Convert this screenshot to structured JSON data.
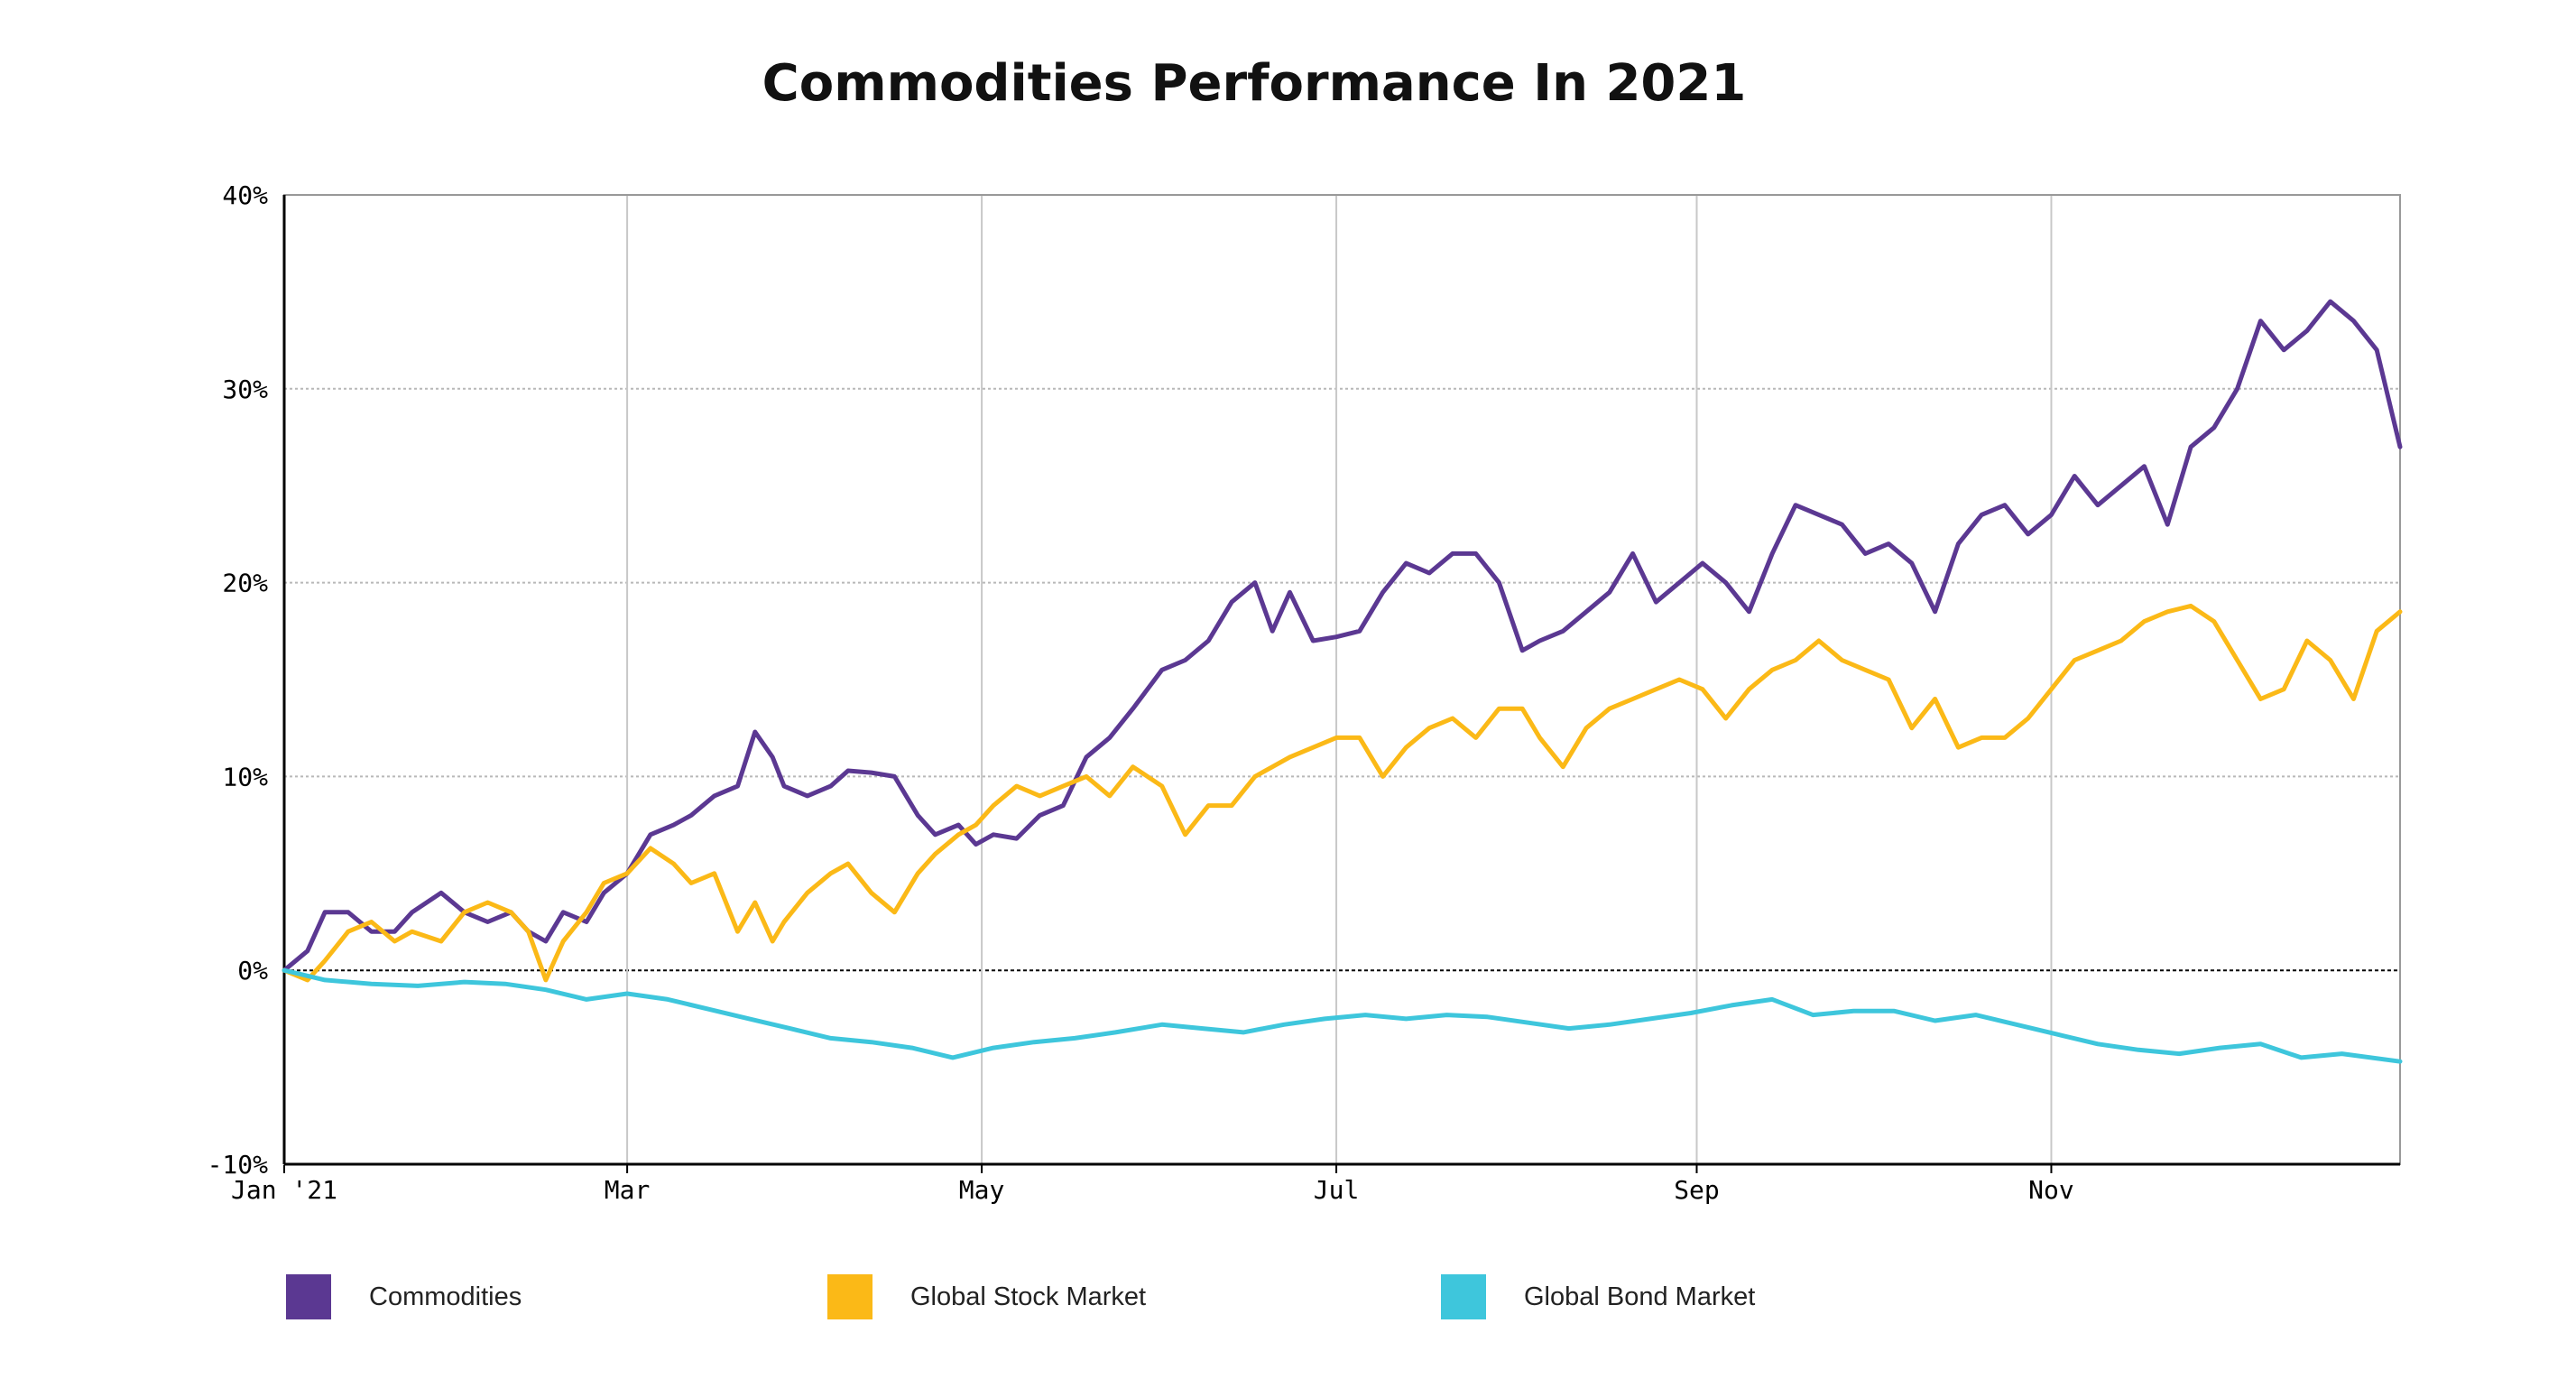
{
  "chart_data": {
    "type": "line",
    "title": "Commodities Performance In 2021",
    "xlabel": "",
    "ylabel": "",
    "ylim": [
      -10,
      40
    ],
    "xlim": [
      "2021-01-01",
      "2021-12-31"
    ],
    "y_ticks": [
      "-10%",
      "0%",
      "10%",
      "20%",
      "30%",
      "40%"
    ],
    "x_ticks": [
      {
        "date": "2021-01-01",
        "label": "Jan '21"
      },
      {
        "date": "2021-03-01",
        "label": "Mar"
      },
      {
        "date": "2021-05-01",
        "label": "May"
      },
      {
        "date": "2021-07-01",
        "label": "Jul"
      },
      {
        "date": "2021-09-01",
        "label": "Sep"
      },
      {
        "date": "2021-11-01",
        "label": "Nov"
      }
    ],
    "grid": true,
    "legend_position": "bottom",
    "series": [
      {
        "name": "Commodities",
        "color": "#5b3892",
        "points": [
          [
            "2021-01-01",
            0
          ],
          [
            "2021-01-05",
            1
          ],
          [
            "2021-01-08",
            3
          ],
          [
            "2021-01-12",
            3
          ],
          [
            "2021-01-16",
            2
          ],
          [
            "2021-01-20",
            2
          ],
          [
            "2021-01-23",
            3
          ],
          [
            "2021-01-28",
            4
          ],
          [
            "2021-02-01",
            3
          ],
          [
            "2021-02-05",
            2.5
          ],
          [
            "2021-02-09",
            3
          ],
          [
            "2021-02-12",
            2
          ],
          [
            "2021-02-15",
            1.5
          ],
          [
            "2021-02-18",
            3
          ],
          [
            "2021-02-22",
            2.5
          ],
          [
            "2021-02-25",
            4
          ],
          [
            "2021-03-01",
            5
          ],
          [
            "2021-03-05",
            7
          ],
          [
            "2021-03-09",
            7.5
          ],
          [
            "2021-03-12",
            8
          ],
          [
            "2021-03-16",
            9
          ],
          [
            "2021-03-20",
            9.5
          ],
          [
            "2021-03-23",
            12.3
          ],
          [
            "2021-03-26",
            11
          ],
          [
            "2021-03-28",
            9.5
          ],
          [
            "2021-04-01",
            9
          ],
          [
            "2021-04-05",
            9.5
          ],
          [
            "2021-04-08",
            10.3
          ],
          [
            "2021-04-12",
            10.2
          ],
          [
            "2021-04-16",
            10
          ],
          [
            "2021-04-20",
            8
          ],
          [
            "2021-04-23",
            7
          ],
          [
            "2021-04-27",
            7.5
          ],
          [
            "2021-04-30",
            6.5
          ],
          [
            "2021-05-03",
            7
          ],
          [
            "2021-05-07",
            6.8
          ],
          [
            "2021-05-11",
            8
          ],
          [
            "2021-05-15",
            8.5
          ],
          [
            "2021-05-19",
            11
          ],
          [
            "2021-05-23",
            12
          ],
          [
            "2021-05-27",
            13.5
          ],
          [
            "2021-06-01",
            15.5
          ],
          [
            "2021-06-05",
            16
          ],
          [
            "2021-06-09",
            17
          ],
          [
            "2021-06-13",
            19
          ],
          [
            "2021-06-17",
            20
          ],
          [
            "2021-06-20",
            17.5
          ],
          [
            "2021-06-23",
            19.5
          ],
          [
            "2021-06-27",
            17
          ],
          [
            "2021-07-01",
            17.2
          ],
          [
            "2021-07-05",
            17.5
          ],
          [
            "2021-07-09",
            19.5
          ],
          [
            "2021-07-13",
            21
          ],
          [
            "2021-07-17",
            20.5
          ],
          [
            "2021-07-21",
            21.5
          ],
          [
            "2021-07-25",
            21.5
          ],
          [
            "2021-07-29",
            20
          ],
          [
            "2021-08-02",
            16.5
          ],
          [
            "2021-08-05",
            17
          ],
          [
            "2021-08-09",
            17.5
          ],
          [
            "2021-08-13",
            18.5
          ],
          [
            "2021-08-17",
            19.5
          ],
          [
            "2021-08-21",
            21.5
          ],
          [
            "2021-08-25",
            19
          ],
          [
            "2021-08-29",
            20
          ],
          [
            "2021-09-02",
            21
          ],
          [
            "2021-09-06",
            20
          ],
          [
            "2021-09-10",
            18.5
          ],
          [
            "2021-09-14",
            21.5
          ],
          [
            "2021-09-18",
            24
          ],
          [
            "2021-09-22",
            23.5
          ],
          [
            "2021-09-26",
            23
          ],
          [
            "2021-09-30",
            21.5
          ],
          [
            "2021-10-04",
            22
          ],
          [
            "2021-10-08",
            21
          ],
          [
            "2021-10-12",
            18.5
          ],
          [
            "2021-10-16",
            22
          ],
          [
            "2021-10-20",
            23.5
          ],
          [
            "2021-10-24",
            24
          ],
          [
            "2021-10-28",
            22.5
          ],
          [
            "2021-11-01",
            23.5
          ],
          [
            "2021-11-05",
            25.5
          ],
          [
            "2021-11-09",
            24
          ],
          [
            "2021-11-13",
            25
          ],
          [
            "2021-11-17",
            26
          ],
          [
            "2021-11-21",
            23
          ],
          [
            "2021-11-25",
            27
          ],
          [
            "2021-11-29",
            28
          ],
          [
            "2021-12-03",
            30
          ],
          [
            "2021-12-07",
            33.5
          ],
          [
            "2021-12-11",
            32
          ],
          [
            "2021-12-15",
            33
          ],
          [
            "2021-12-19",
            34.5
          ],
          [
            "2021-12-23",
            33.5
          ],
          [
            "2021-12-27",
            32
          ],
          [
            "2021-12-31",
            27
          ]
        ]
      },
      {
        "name": "Global Stock Market",
        "color": "#fbb917",
        "points": [
          [
            "2021-01-01",
            0
          ],
          [
            "2021-01-05",
            -0.5
          ],
          [
            "2021-01-08",
            0.5
          ],
          [
            "2021-01-12",
            2
          ],
          [
            "2021-01-16",
            2.5
          ],
          [
            "2021-01-20",
            1.5
          ],
          [
            "2021-01-23",
            2
          ],
          [
            "2021-01-28",
            1.5
          ],
          [
            "2021-02-01",
            3
          ],
          [
            "2021-02-05",
            3.5
          ],
          [
            "2021-02-09",
            3
          ],
          [
            "2021-02-12",
            2
          ],
          [
            "2021-02-15",
            -0.5
          ],
          [
            "2021-02-18",
            1.5
          ],
          [
            "2021-02-22",
            3
          ],
          [
            "2021-02-25",
            4.5
          ],
          [
            "2021-03-01",
            5
          ],
          [
            "2021-03-05",
            6.3
          ],
          [
            "2021-03-09",
            5.5
          ],
          [
            "2021-03-12",
            4.5
          ],
          [
            "2021-03-16",
            5
          ],
          [
            "2021-03-20",
            2
          ],
          [
            "2021-03-23",
            3.5
          ],
          [
            "2021-03-26",
            1.5
          ],
          [
            "2021-03-28",
            2.5
          ],
          [
            "2021-04-01",
            4
          ],
          [
            "2021-04-05",
            5
          ],
          [
            "2021-04-08",
            5.5
          ],
          [
            "2021-04-12",
            4
          ],
          [
            "2021-04-16",
            3
          ],
          [
            "2021-04-20",
            5
          ],
          [
            "2021-04-23",
            6
          ],
          [
            "2021-04-27",
            7
          ],
          [
            "2021-04-30",
            7.5
          ],
          [
            "2021-05-03",
            8.5
          ],
          [
            "2021-05-07",
            9.5
          ],
          [
            "2021-05-11",
            9
          ],
          [
            "2021-05-15",
            9.5
          ],
          [
            "2021-05-19",
            10
          ],
          [
            "2021-05-23",
            9
          ],
          [
            "2021-05-27",
            10.5
          ],
          [
            "2021-06-01",
            9.5
          ],
          [
            "2021-06-05",
            7
          ],
          [
            "2021-06-09",
            8.5
          ],
          [
            "2021-06-13",
            8.5
          ],
          [
            "2021-06-17",
            10
          ],
          [
            "2021-06-20",
            10.5
          ],
          [
            "2021-06-23",
            11
          ],
          [
            "2021-06-27",
            11.5
          ],
          [
            "2021-07-01",
            12
          ],
          [
            "2021-07-05",
            12
          ],
          [
            "2021-07-09",
            10
          ],
          [
            "2021-07-13",
            11.5
          ],
          [
            "2021-07-17",
            12.5
          ],
          [
            "2021-07-21",
            13
          ],
          [
            "2021-07-25",
            12
          ],
          [
            "2021-07-29",
            13.5
          ],
          [
            "2021-08-02",
            13.5
          ],
          [
            "2021-08-05",
            12
          ],
          [
            "2021-08-09",
            10.5
          ],
          [
            "2021-08-13",
            12.5
          ],
          [
            "2021-08-17",
            13.5
          ],
          [
            "2021-08-21",
            14
          ],
          [
            "2021-08-25",
            14.5
          ],
          [
            "2021-08-29",
            15
          ],
          [
            "2021-09-02",
            14.5
          ],
          [
            "2021-09-06",
            13
          ],
          [
            "2021-09-10",
            14.5
          ],
          [
            "2021-09-14",
            15.5
          ],
          [
            "2021-09-18",
            16
          ],
          [
            "2021-09-22",
            17
          ],
          [
            "2021-09-26",
            16
          ],
          [
            "2021-09-30",
            15.5
          ],
          [
            "2021-10-04",
            15
          ],
          [
            "2021-10-08",
            12.5
          ],
          [
            "2021-10-12",
            14
          ],
          [
            "2021-10-16",
            11.5
          ],
          [
            "2021-10-20",
            12
          ],
          [
            "2021-10-24",
            12
          ],
          [
            "2021-10-28",
            13
          ],
          [
            "2021-11-01",
            14.5
          ],
          [
            "2021-11-05",
            16
          ],
          [
            "2021-11-09",
            16.5
          ],
          [
            "2021-11-13",
            17
          ],
          [
            "2021-11-17",
            18
          ],
          [
            "2021-11-21",
            18.5
          ],
          [
            "2021-11-25",
            18.8
          ],
          [
            "2021-11-29",
            18
          ],
          [
            "2021-12-03",
            16
          ],
          [
            "2021-12-07",
            14
          ],
          [
            "2021-12-11",
            14.5
          ],
          [
            "2021-12-15",
            17
          ],
          [
            "2021-12-19",
            16
          ],
          [
            "2021-12-23",
            14
          ],
          [
            "2021-12-27",
            17.5
          ],
          [
            "2021-12-31",
            18.5
          ]
        ]
      },
      {
        "name": "Global Bond Market",
        "color": "#3ec6dc",
        "points": [
          [
            "2021-01-01",
            0
          ],
          [
            "2021-01-08",
            -0.5
          ],
          [
            "2021-01-16",
            -0.7
          ],
          [
            "2021-01-24",
            -0.8
          ],
          [
            "2021-02-01",
            -0.6
          ],
          [
            "2021-02-08",
            -0.7
          ],
          [
            "2021-02-15",
            -1
          ],
          [
            "2021-02-22",
            -1.5
          ],
          [
            "2021-03-01",
            -1.2
          ],
          [
            "2021-03-08",
            -1.5
          ],
          [
            "2021-03-15",
            -2
          ],
          [
            "2021-03-22",
            -2.5
          ],
          [
            "2021-03-29",
            -3
          ],
          [
            "2021-04-05",
            -3.5
          ],
          [
            "2021-04-12",
            -3.7
          ],
          [
            "2021-04-19",
            -4
          ],
          [
            "2021-04-26",
            -4.5
          ],
          [
            "2021-05-03",
            -4
          ],
          [
            "2021-05-10",
            -3.7
          ],
          [
            "2021-05-17",
            -3.5
          ],
          [
            "2021-05-24",
            -3.2
          ],
          [
            "2021-06-01",
            -2.8
          ],
          [
            "2021-06-08",
            -3
          ],
          [
            "2021-06-15",
            -3.2
          ],
          [
            "2021-06-22",
            -2.8
          ],
          [
            "2021-06-29",
            -2.5
          ],
          [
            "2021-07-06",
            -2.3
          ],
          [
            "2021-07-13",
            -2.5
          ],
          [
            "2021-07-20",
            -2.3
          ],
          [
            "2021-07-27",
            -2.4
          ],
          [
            "2021-08-03",
            -2.7
          ],
          [
            "2021-08-10",
            -3
          ],
          [
            "2021-08-17",
            -2.8
          ],
          [
            "2021-08-24",
            -2.5
          ],
          [
            "2021-08-31",
            -2.2
          ],
          [
            "2021-09-07",
            -1.8
          ],
          [
            "2021-09-14",
            -1.5
          ],
          [
            "2021-09-21",
            -2.3
          ],
          [
            "2021-09-28",
            -2.1
          ],
          [
            "2021-10-05",
            -2.1
          ],
          [
            "2021-10-12",
            -2.6
          ],
          [
            "2021-10-19",
            -2.3
          ],
          [
            "2021-10-26",
            -2.8
          ],
          [
            "2021-11-02",
            -3.3
          ],
          [
            "2021-11-09",
            -3.8
          ],
          [
            "2021-11-16",
            -4.1
          ],
          [
            "2021-11-23",
            -4.3
          ],
          [
            "2021-11-30",
            -4
          ],
          [
            "2021-12-07",
            -3.8
          ],
          [
            "2021-12-14",
            -4.5
          ],
          [
            "2021-12-21",
            -4.3
          ],
          [
            "2021-12-31",
            -4.7
          ]
        ]
      }
    ]
  },
  "legend": [
    {
      "label": "Commodities",
      "color": "#5b3892"
    },
    {
      "label": "Global Stock Market",
      "color": "#fbb917"
    },
    {
      "label": "Global Bond Market",
      "color": "#3ec6dc"
    }
  ]
}
